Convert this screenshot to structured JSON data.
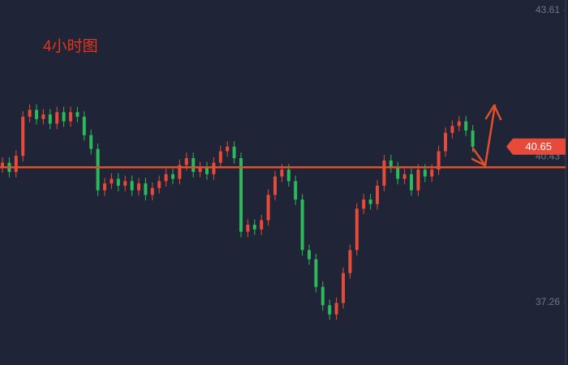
{
  "chart_data": {
    "type": "candlestick",
    "title": "4小时图",
    "ylim": [
      35.9,
      43.84
    ],
    "yticks": [
      37.26,
      40.43,
      43.61
    ],
    "up_color": "#e84a3a",
    "down_color": "#2eb85c",
    "last_price": 40.65,
    "level": 40.2,
    "open": [
      40.2,
      40.3,
      40.1,
      40.45,
      41.3,
      41.45,
      41.25,
      41.35,
      41.15,
      41.4,
      41.2,
      41.4,
      41.3,
      40.9,
      40.6,
      39.7,
      39.85,
      39.95,
      39.8,
      39.9,
      39.7,
      39.85,
      39.6,
      39.75,
      39.9,
      40.05,
      39.95,
      40.25,
      40.4,
      40.1,
      40.2,
      40.05,
      40.3,
      40.55,
      40.65,
      40.4,
      38.8,
      38.95,
      38.85,
      39.05,
      39.6,
      40.0,
      40.15,
      39.9,
      39.5,
      38.4,
      38.2,
      37.6,
      37.2,
      37.0,
      37.25,
      37.9,
      38.4,
      39.3,
      39.5,
      39.4,
      39.8,
      40.35,
      40.2,
      39.95,
      40.05,
      39.7,
      40.15,
      40.0,
      40.15,
      40.55,
      40.95,
      41.1,
      41.2,
      41.0
    ],
    "high": [
      40.42,
      40.42,
      40.57,
      41.42,
      41.57,
      41.57,
      41.47,
      41.47,
      41.52,
      41.52,
      41.52,
      41.52,
      41.42,
      41.02,
      40.72,
      39.97,
      40.07,
      40.07,
      40.02,
      40.02,
      39.97,
      39.97,
      39.87,
      40.02,
      40.17,
      40.17,
      40.37,
      40.52,
      40.52,
      40.32,
      40.32,
      40.42,
      40.67,
      40.77,
      40.77,
      40.52,
      39.07,
      39.07,
      39.17,
      39.72,
      40.12,
      40.27,
      40.27,
      40.02,
      39.62,
      38.52,
      38.32,
      37.72,
      37.32,
      37.37,
      38.02,
      38.52,
      39.42,
      39.62,
      39.62,
      39.92,
      40.47,
      40.47,
      40.32,
      40.17,
      40.17,
      40.27,
      40.27,
      40.27,
      40.67,
      41.07,
      41.22,
      41.32,
      41.32,
      41.12
    ],
    "low": [
      40.08,
      39.98,
      39.98,
      40.33,
      41.18,
      41.13,
      41.13,
      41.03,
      41.03,
      41.08,
      41.08,
      41.18,
      40.78,
      40.48,
      39.58,
      39.58,
      39.73,
      39.68,
      39.68,
      39.58,
      39.58,
      39.48,
      39.48,
      39.63,
      39.78,
      39.83,
      39.83,
      40.13,
      39.98,
      39.98,
      39.93,
      39.93,
      40.18,
      40.43,
      40.28,
      38.68,
      38.68,
      38.73,
      38.73,
      38.93,
      39.48,
      39.88,
      39.78,
      39.38,
      38.28,
      38.08,
      37.48,
      37.08,
      36.88,
      36.88,
      37.13,
      37.78,
      38.28,
      39.18,
      39.28,
      39.28,
      39.68,
      40.08,
      39.83,
      39.83,
      39.58,
      39.58,
      39.88,
      39.88,
      40.03,
      40.43,
      40.83,
      40.98,
      40.88,
      40.53
    ],
    "close": [
      40.3,
      40.1,
      40.45,
      41.3,
      41.45,
      41.25,
      41.35,
      41.15,
      41.4,
      41.2,
      41.4,
      41.3,
      40.9,
      40.6,
      39.7,
      39.85,
      39.95,
      39.8,
      39.9,
      39.7,
      39.85,
      39.6,
      39.75,
      39.9,
      40.05,
      39.95,
      40.25,
      40.4,
      40.1,
      40.2,
      40.05,
      40.3,
      40.55,
      40.65,
      40.4,
      38.8,
      38.95,
      38.85,
      39.05,
      39.6,
      40.0,
      40.15,
      39.9,
      39.5,
      38.4,
      38.2,
      37.6,
      37.2,
      37.0,
      37.25,
      37.9,
      38.4,
      39.3,
      39.5,
      39.4,
      39.8,
      40.35,
      40.2,
      39.95,
      40.05,
      39.7,
      40.15,
      40.0,
      40.15,
      40.55,
      40.95,
      41.1,
      41.2,
      41.0,
      40.65
    ]
  }
}
